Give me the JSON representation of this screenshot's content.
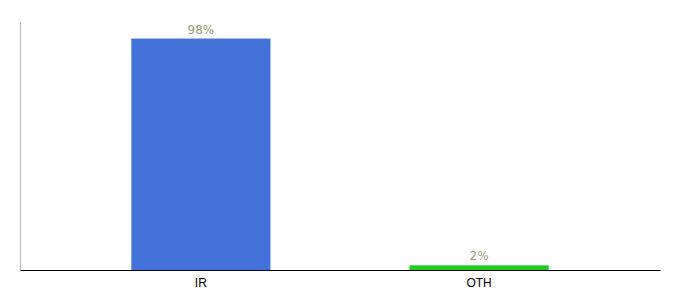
{
  "chart_data": {
    "type": "bar",
    "categories": [
      "IR",
      "OTH"
    ],
    "values": [
      98,
      2
    ],
    "value_labels": [
      "98%",
      "2%"
    ],
    "colors": [
      "#4472db",
      "#22cc22"
    ],
    "ylim": [
      0,
      105
    ],
    "data_labels": true,
    "tick_labels": "x",
    "grid": false
  }
}
